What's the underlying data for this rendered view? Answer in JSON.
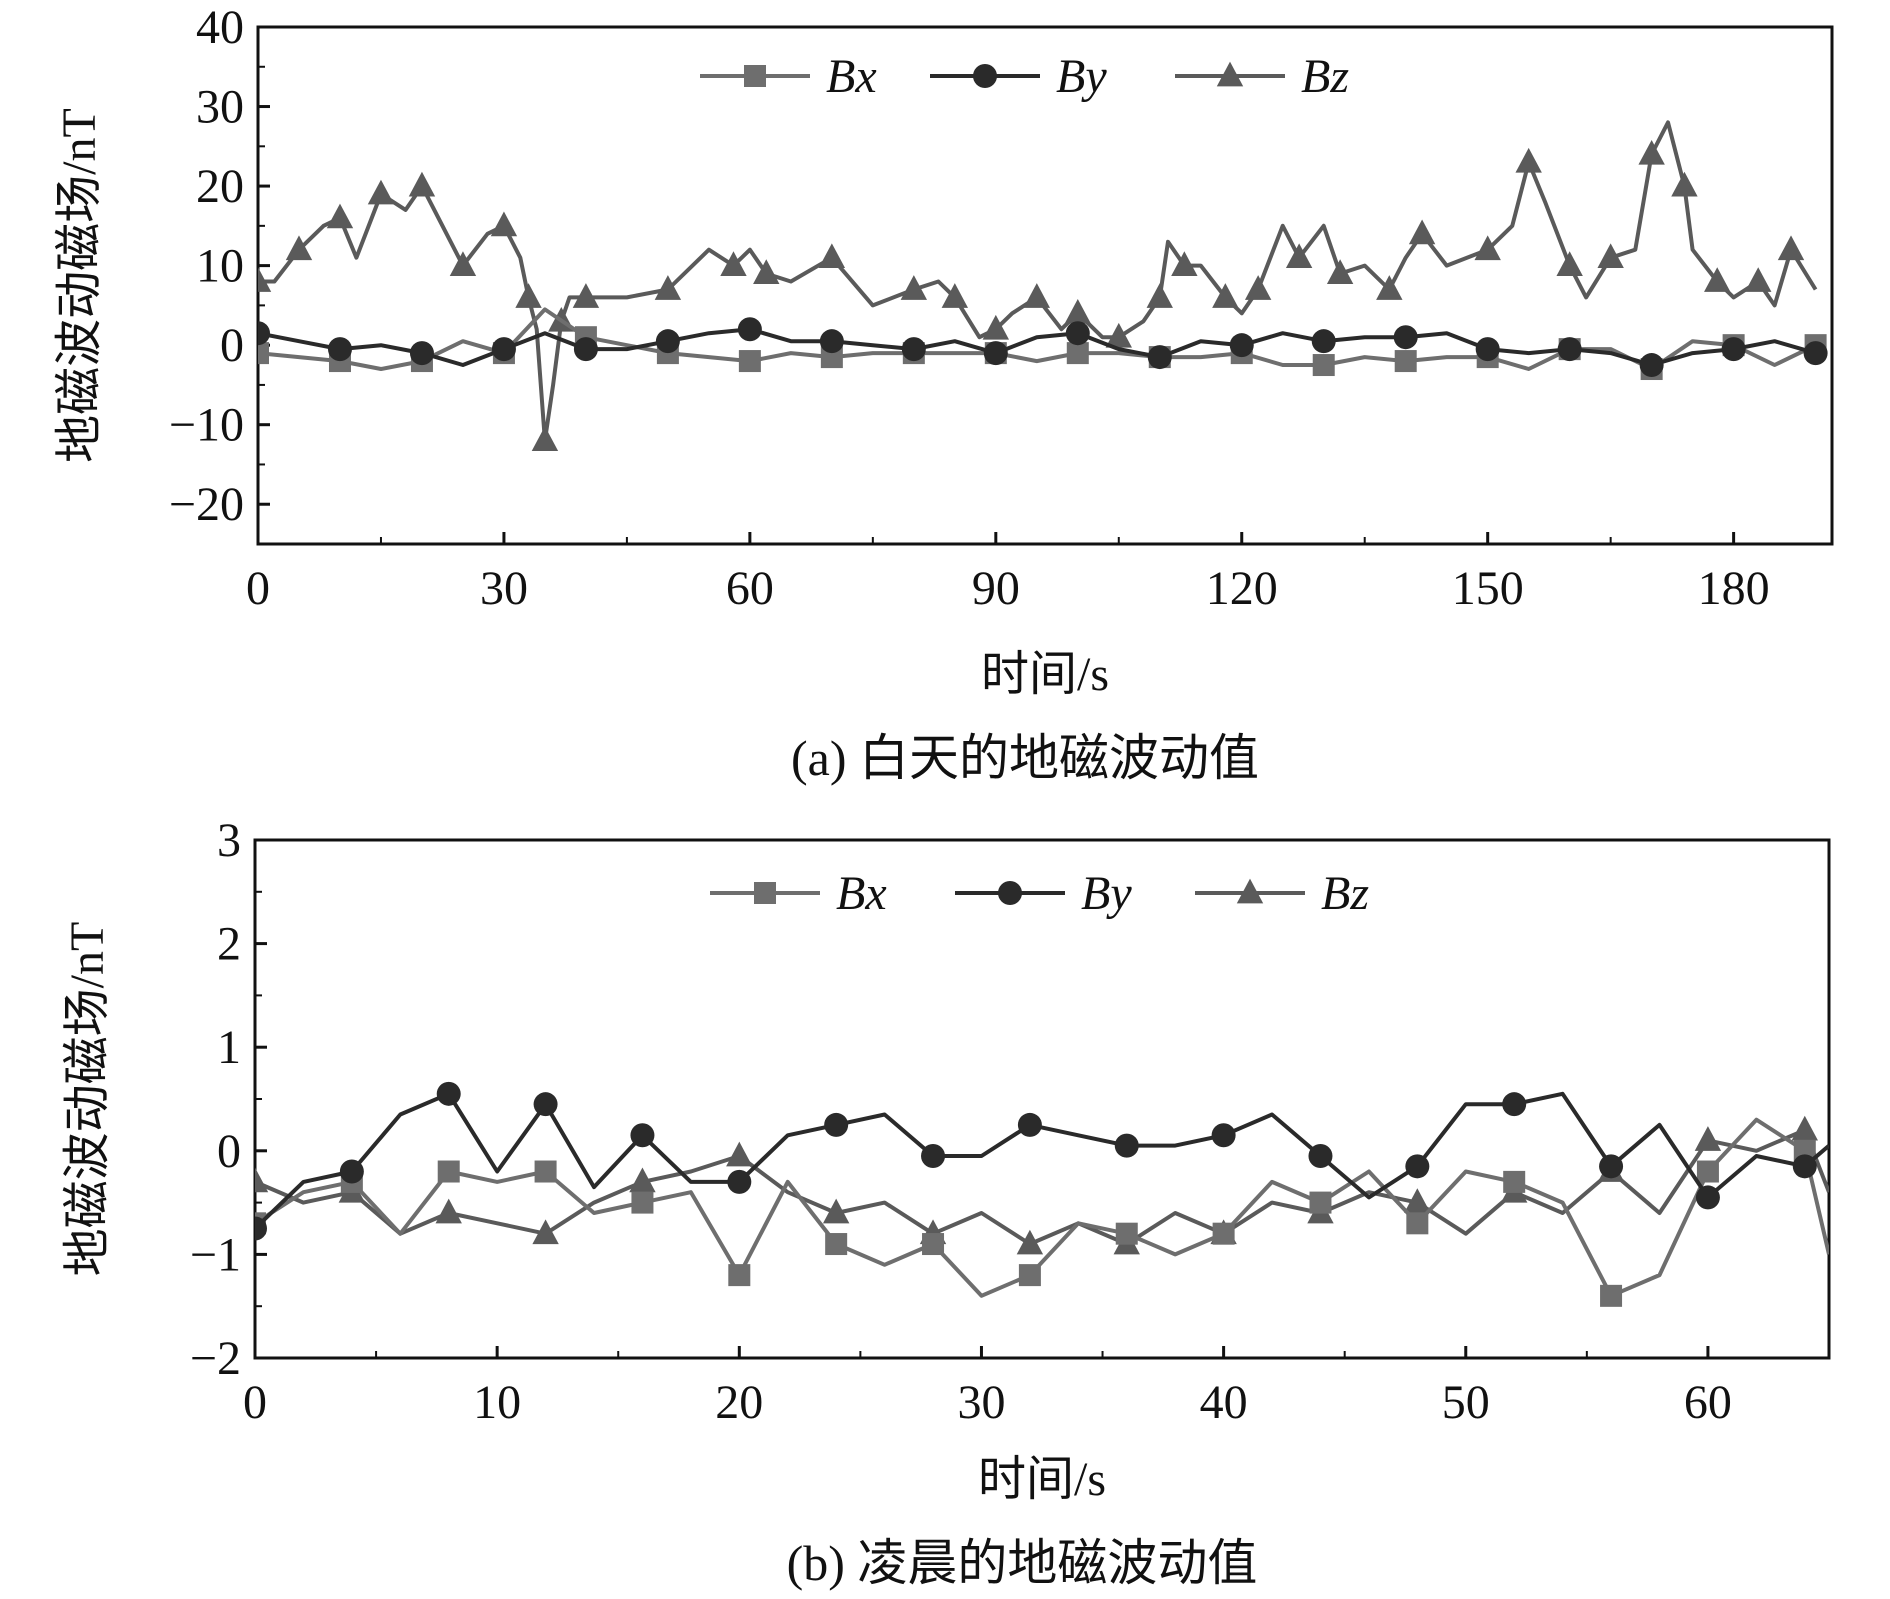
{
  "figure": {
    "charts": [
      {
        "ylabel": "地磁波动磁场/nT",
        "xlabel": "时间/s",
        "caption": "(a) 白天的地磁波动值"
      },
      {
        "ylabel": "地磁波动磁场/nT",
        "xlabel": "时间/s",
        "caption": "(b) 凌晨的地磁波动值"
      }
    ]
  },
  "chart_data": [
    {
      "type": "line",
      "title": "",
      "xlabel": "时间/s",
      "ylabel": "地磁波动磁场/nT",
      "caption": "(a) 白天的地磁波动值",
      "xlim": [
        0,
        192
      ],
      "ylim": [
        -25,
        40
      ],
      "xticks": [
        0,
        30,
        60,
        90,
        120,
        150,
        180
      ],
      "yticks": [
        -20,
        -10,
        0,
        10,
        20,
        30,
        40
      ],
      "grid": false,
      "legend_position": "top-center",
      "series": [
        {
          "name": "Bx",
          "marker": "square",
          "color": "#6e6e6e",
          "x": [
            0,
            5,
            10,
            15,
            20,
            25,
            30,
            35,
            40,
            45,
            50,
            55,
            60,
            65,
            70,
            75,
            80,
            85,
            90,
            95,
            100,
            105,
            110,
            115,
            120,
            125,
            130,
            135,
            140,
            145,
            150,
            155,
            160,
            165,
            170,
            175,
            180,
            185,
            190
          ],
          "y": [
            -1,
            -1.5,
            -2,
            -3,
            -2,
            0.5,
            -1,
            4.5,
            1,
            0,
            -1,
            -1.5,
            -2,
            -1,
            -1.5,
            -1,
            -1,
            -1,
            -1,
            -2,
            -1,
            -1,
            -1.5,
            -1.5,
            -1,
            -2.5,
            -2.5,
            -1.5,
            -2,
            -1.5,
            -1.5,
            -3,
            -0.5,
            -0.5,
            -3,
            0.5,
            0,
            -2.5,
            0
          ]
        },
        {
          "name": "By",
          "marker": "circle",
          "color": "#2a2a2a",
          "x": [
            0,
            5,
            10,
            15,
            20,
            25,
            30,
            35,
            40,
            45,
            50,
            55,
            60,
            65,
            70,
            75,
            80,
            85,
            90,
            95,
            100,
            105,
            110,
            115,
            120,
            125,
            130,
            135,
            140,
            145,
            150,
            155,
            160,
            165,
            170,
            175,
            180,
            185,
            190
          ],
          "y": [
            1.5,
            0.5,
            -0.5,
            0,
            -1,
            -2.5,
            -0.5,
            1.5,
            -0.5,
            -0.5,
            0.5,
            1.5,
            2,
            0.5,
            0.5,
            0,
            -0.5,
            0.5,
            -1,
            1,
            1.5,
            -0.5,
            -1.5,
            0.5,
            0,
            1.5,
            0.5,
            1,
            1,
            1.5,
            -0.5,
            -1,
            -0.5,
            -1,
            -2.5,
            -1,
            -0.5,
            0.5,
            -1
          ]
        },
        {
          "name": "Bz",
          "marker": "triangle",
          "color": "#5a5a5a",
          "x": [
            0,
            2,
            5,
            8,
            10,
            12,
            15,
            18,
            20,
            22,
            25,
            28,
            30,
            32,
            33,
            34,
            35,
            36,
            37,
            38,
            40,
            45,
            50,
            55,
            58,
            60,
            62,
            65,
            70,
            75,
            80,
            83,
            85,
            88,
            90,
            92,
            95,
            98,
            100,
            103,
            105,
            108,
            110,
            111,
            113,
            115,
            118,
            120,
            122,
            125,
            127,
            130,
            132,
            135,
            138,
            140,
            142,
            145,
            150,
            153,
            155,
            157,
            160,
            162,
            165,
            168,
            170,
            172,
            174,
            175,
            178,
            180,
            183,
            185,
            187,
            190
          ],
          "y": [
            8,
            8,
            12,
            15,
            16,
            11,
            19,
            17,
            20,
            16,
            10,
            14,
            15,
            11,
            6,
            2,
            -12,
            -5,
            3,
            6,
            6,
            6,
            7,
            12,
            10,
            12,
            9,
            8,
            11,
            5,
            7,
            8,
            6,
            1,
            2,
            4,
            6,
            2,
            4,
            1,
            1,
            3,
            6,
            13,
            10,
            10,
            6,
            4,
            7,
            15,
            11,
            15,
            9,
            10,
            7,
            11,
            14,
            10,
            12,
            15,
            23,
            18,
            10,
            6,
            11,
            12,
            24,
            28,
            20,
            12,
            8,
            6,
            8,
            5,
            12,
            7
          ]
        }
      ]
    },
    {
      "type": "line",
      "title": "",
      "xlabel": "时间/s",
      "ylabel": "地磁波动磁场/nT",
      "caption": "(b) 凌晨的地磁波动值",
      "xlim": [
        0,
        65
      ],
      "ylim": [
        -2,
        3
      ],
      "xticks": [
        0,
        10,
        20,
        30,
        40,
        50,
        60
      ],
      "yticks": [
        -2,
        -1,
        0,
        1,
        2,
        3
      ],
      "grid": false,
      "legend_position": "top-center",
      "series": [
        {
          "name": "Bx",
          "marker": "square",
          "color": "#6e6e6e",
          "x": [
            0,
            2,
            4,
            6,
            8,
            10,
            12,
            14,
            16,
            18,
            20,
            22,
            24,
            26,
            28,
            30,
            32,
            34,
            36,
            38,
            40,
            42,
            44,
            46,
            48,
            50,
            52,
            54,
            56,
            58,
            60,
            62,
            64,
            65
          ],
          "y": [
            -0.7,
            -0.4,
            -0.3,
            -0.8,
            -0.2,
            -0.3,
            -0.2,
            -0.6,
            -0.5,
            -0.4,
            -1.2,
            -0.3,
            -0.9,
            -1.1,
            -0.9,
            -1.4,
            -1.2,
            -0.7,
            -0.8,
            -1.0,
            -0.8,
            -0.3,
            -0.5,
            -0.2,
            -0.7,
            -0.2,
            -0.3,
            -0.5,
            -1.4,
            -1.2,
            -0.2,
            0.3,
            0.0,
            -1.0
          ]
        },
        {
          "name": "By",
          "marker": "circle",
          "color": "#2a2a2a",
          "x": [
            0,
            2,
            4,
            6,
            8,
            10,
            12,
            14,
            16,
            18,
            20,
            22,
            24,
            26,
            28,
            30,
            32,
            34,
            36,
            38,
            40,
            42,
            44,
            46,
            48,
            50,
            52,
            54,
            56,
            58,
            60,
            62,
            64,
            65
          ],
          "y": [
            -0.75,
            -0.3,
            -0.2,
            0.35,
            0.55,
            -0.2,
            0.45,
            -0.35,
            0.15,
            -0.3,
            -0.3,
            0.15,
            0.25,
            0.35,
            -0.05,
            -0.05,
            0.25,
            0.15,
            0.05,
            0.05,
            0.15,
            0.35,
            -0.05,
            -0.45,
            -0.15,
            0.45,
            0.45,
            0.55,
            -0.15,
            0.25,
            -0.45,
            -0.05,
            -0.15,
            0.05
          ]
        },
        {
          "name": "Bz",
          "marker": "triangle",
          "color": "#5a5a5a",
          "x": [
            0,
            2,
            4,
            6,
            8,
            10,
            12,
            14,
            16,
            18,
            20,
            22,
            24,
            26,
            28,
            30,
            32,
            34,
            36,
            38,
            40,
            42,
            44,
            46,
            48,
            50,
            52,
            54,
            56,
            58,
            60,
            62,
            64,
            65
          ],
          "y": [
            -0.3,
            -0.5,
            -0.4,
            -0.8,
            -0.6,
            -0.7,
            -0.8,
            -0.5,
            -0.3,
            -0.2,
            -0.05,
            -0.4,
            -0.6,
            -0.5,
            -0.8,
            -0.6,
            -0.9,
            -0.7,
            -0.9,
            -0.6,
            -0.8,
            -0.5,
            -0.6,
            -0.4,
            -0.5,
            -0.8,
            -0.4,
            -0.6,
            -0.2,
            -0.6,
            0.1,
            0.0,
            0.2,
            -0.4
          ]
        }
      ]
    }
  ]
}
